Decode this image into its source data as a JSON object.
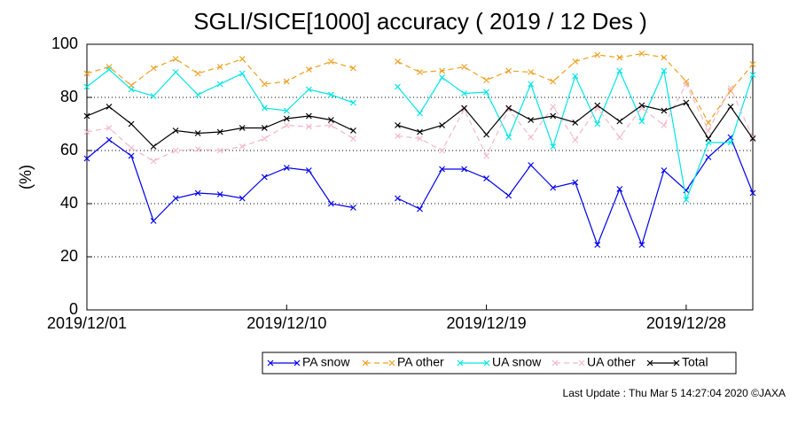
{
  "chart_data": {
    "type": "line",
    "title": "SGLI/SICE[1000] accuracy ( 2019 / 12 Des )",
    "y_label": "(%)",
    "footer": "Last Update : Thu Mar  5 14:27:04 2020  ©JAXA",
    "x": [
      "2019/12/01",
      "2019/12/02",
      "2019/12/03",
      "2019/12/04",
      "2019/12/05",
      "2019/12/06",
      "2019/12/07",
      "2019/12/08",
      "2019/12/09",
      "2019/12/10",
      "2019/12/11",
      "2019/12/12",
      "2019/12/13",
      "2019/12/14",
      "2019/12/15",
      "2019/12/16",
      "2019/12/17",
      "2019/12/18",
      "2019/12/19",
      "2019/12/20",
      "2019/12/21",
      "2019/12/22",
      "2019/12/23",
      "2019/12/24",
      "2019/12/25",
      "2019/12/26",
      "2019/12/27",
      "2019/12/28",
      "2019/12/29",
      "2019/12/30",
      "2019/12/31"
    ],
    "xticks": [
      "2019/12/01",
      "2019/12/10",
      "2019/12/19",
      "2019/12/28"
    ],
    "ylim": [
      0,
      100
    ],
    "yticks": [
      0,
      20,
      40,
      60,
      80,
      100
    ],
    "grid": true,
    "series": [
      {
        "name": "PA snow",
        "color": "#0000ee",
        "style": "solid",
        "values": [
          57,
          64,
          58,
          33.5,
          42,
          44,
          43.5,
          42,
          50,
          53.5,
          52.5,
          40,
          38.5,
          null,
          42,
          38,
          53,
          53,
          49.5,
          43,
          54.5,
          46,
          48,
          24.5,
          45.5,
          24.5,
          52.5,
          45,
          57.5,
          65,
          44
        ]
      },
      {
        "name": "PA other",
        "color": "#f0a020",
        "style": "dashed",
        "values": [
          89,
          91.5,
          84.5,
          91,
          94.5,
          89,
          91.5,
          94.5,
          85,
          86,
          90.5,
          93.5,
          91,
          null,
          93.5,
          89.5,
          90,
          91.5,
          86.5,
          90,
          89.5,
          86,
          93.5,
          96,
          95,
          96.5,
          95,
          86,
          70.5,
          82.5,
          92.5
        ]
      },
      {
        "name": "UA snow",
        "color": "#00e5e5",
        "style": "solid",
        "values": [
          84,
          90.5,
          83,
          80.5,
          89.5,
          81,
          85,
          89,
          76,
          75,
          83,
          81,
          78,
          null,
          84,
          74,
          87.5,
          81.5,
          82,
          65,
          85,
          61.5,
          88,
          70,
          90,
          71,
          90,
          41.5,
          63,
          63,
          88.5
        ]
      },
      {
        "name": "UA other",
        "color": "#f4b8c8",
        "style": "dashed",
        "values": [
          67,
          68.5,
          61,
          56,
          60,
          60.5,
          60,
          61.5,
          64.5,
          69.5,
          69,
          69.5,
          64.5,
          null,
          65.5,
          64.5,
          60,
          75.5,
          58,
          75.5,
          65,
          76.5,
          64,
          76,
          65,
          76,
          69.5,
          85,
          67.5,
          83.5,
          65
        ]
      },
      {
        "name": "Total",
        "color": "#000000",
        "style": "solid",
        "values": [
          73,
          76.5,
          70,
          61.5,
          67.5,
          66.5,
          67,
          68.5,
          68.5,
          72,
          73,
          71.5,
          67.5,
          null,
          69.5,
          67,
          69.5,
          76,
          66,
          76,
          71.5,
          73,
          70.5,
          77,
          71,
          77,
          75,
          78,
          64.5,
          76.5,
          64.5
        ]
      }
    ]
  }
}
